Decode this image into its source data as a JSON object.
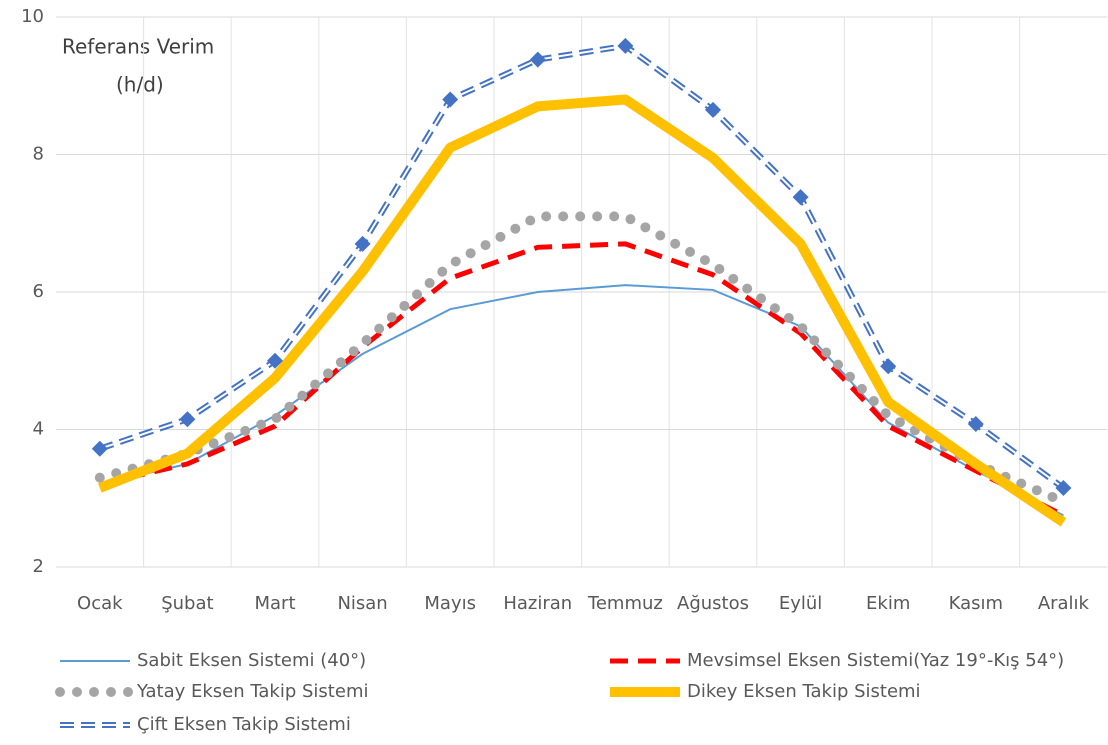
{
  "chart_data": {
    "type": "line",
    "annotation": [
      "Referans Verim",
      "(h/d)"
    ],
    "categories": [
      "Ocak",
      "Şubat",
      "Mart",
      "Nisan",
      "Mayıs",
      "Haziran",
      "Temmuz",
      "Ağustos",
      "Eylül",
      "Ekim",
      "Kasım",
      "Aralık"
    ],
    "ylim": [
      2,
      10
    ],
    "yticks": [
      2,
      4,
      6,
      8,
      10
    ],
    "grid": true,
    "legend": "bottom",
    "series": [
      {
        "name": "Sabit Eksen Sistemi (40°)",
        "color": "#5b9bd5",
        "style": "solid",
        "values": [
          3.2,
          3.5,
          4.2,
          5.1,
          5.75,
          6.0,
          6.1,
          6.03,
          5.5,
          4.1,
          3.4,
          2.75
        ]
      },
      {
        "name": "Mevsimsel Eksen Sistemi(Yaz 19°-Kış 54°)",
        "color": "#ff0000",
        "style": "dashed",
        "values": [
          3.2,
          3.5,
          4.05,
          5.2,
          6.2,
          6.65,
          6.7,
          6.25,
          5.4,
          4.05,
          3.4,
          2.75
        ]
      },
      {
        "name": "Yatay Eksen Takip Sistemi",
        "color": "#a5a5a5",
        "style": "dotted",
        "values": [
          3.3,
          3.65,
          4.15,
          5.25,
          6.4,
          7.1,
          7.1,
          6.4,
          5.5,
          4.2,
          3.5,
          2.95
        ]
      },
      {
        "name": "Dikey Eksen Takip Sistemi",
        "color": "#ffc000",
        "style": "thick",
        "values": [
          3.15,
          3.65,
          4.75,
          6.3,
          8.1,
          8.7,
          8.8,
          7.95,
          6.7,
          4.4,
          3.5,
          2.65
        ]
      },
      {
        "name": "Çift Eksen Takip Sistemi",
        "color": "#4472c4",
        "style": "double-dashed",
        "marker": "diamond",
        "values": [
          3.72,
          4.15,
          5.0,
          6.7,
          8.8,
          9.38,
          9.58,
          8.65,
          7.38,
          4.92,
          4.08,
          3.15
        ]
      }
    ]
  }
}
